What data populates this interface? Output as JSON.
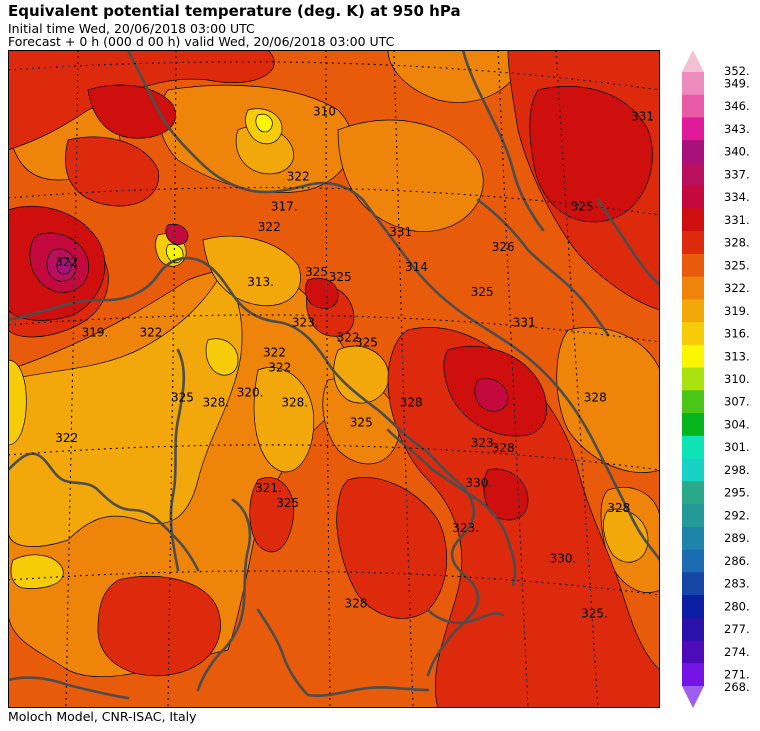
{
  "header": {
    "title": "Equivalent potential temperature (deg. K) at 950 hPa",
    "initial_time": "Initial time  Wed, 20/06/2018  03:00 UTC",
    "forecast": "Forecast  +   0 h  (000 d 00 h)  valid Wed, 20/06/2018 03:00 UTC"
  },
  "footer": {
    "credit": "Moloch Model, CNR-ISAC, Italy"
  },
  "legend": {
    "levels": [
      {
        "label": "352.",
        "color": "#f3c2d2"
      },
      {
        "label": "349.",
        "color": "#ec8bbd"
      },
      {
        "label": "346.",
        "color": "#e85aa8"
      },
      {
        "label": "343.",
        "color": "#e0189a"
      },
      {
        "label": "340.",
        "color": "#a8107a"
      },
      {
        "label": "337.",
        "color": "#ba0e5e"
      },
      {
        "label": "334.",
        "color": "#c4093e"
      },
      {
        "label": "331.",
        "color": "#cf0f0d"
      },
      {
        "label": "328.",
        "color": "#de2a0c"
      },
      {
        "label": "325.",
        "color": "#e75b0b"
      },
      {
        "label": "322.",
        "color": "#ee8409"
      },
      {
        "label": "319.",
        "color": "#f2a70b"
      },
      {
        "label": "316.",
        "color": "#f6cb07"
      },
      {
        "label": "313.",
        "color": "#faf502"
      },
      {
        "label": "310.",
        "color": "#a9e20f"
      },
      {
        "label": "307.",
        "color": "#4cc616"
      },
      {
        "label": "304.",
        "color": "#06b41d"
      },
      {
        "label": "301.",
        "color": "#0ee3b5"
      },
      {
        "label": "298.",
        "color": "#17d1c4"
      },
      {
        "label": "295.",
        "color": "#29a98a"
      },
      {
        "label": "292.",
        "color": "#239a98"
      },
      {
        "label": "289.",
        "color": "#1f84a9"
      },
      {
        "label": "286.",
        "color": "#1c6cb4"
      },
      {
        "label": "283.",
        "color": "#1546a6"
      },
      {
        "label": "280.",
        "color": "#0b1fa4"
      },
      {
        "label": "277.",
        "color": "#2a11aa"
      },
      {
        "label": "274.",
        "color": "#4d0bb9"
      },
      {
        "label": "271.",
        "color": "#7415e6"
      },
      {
        "label": "268.",
        "color": "#9e5ff0"
      }
    ]
  },
  "map": {
    "contour_labels": [
      {
        "text": "331",
        "lat": 46.9,
        "lon": 23.9
      },
      {
        "text": "319.",
        "lat": 42.6,
        "lon": 3.0
      },
      {
        "text": "322",
        "lat": 42.6,
        "lon": 5.2
      },
      {
        "text": "325",
        "lat": 41.3,
        "lon": 6.4
      },
      {
        "text": "328.",
        "lat": 41.2,
        "lon": 7.6
      },
      {
        "text": "322",
        "lat": 40.5,
        "lon": 2.0
      },
      {
        "text": "320.",
        "lat": 41.4,
        "lon": 8.9
      },
      {
        "text": "322",
        "lat": 41.9,
        "lon": 10.1
      },
      {
        "text": "323.",
        "lat": 42.8,
        "lon": 11.0
      },
      {
        "text": "325",
        "lat": 43.8,
        "lon": 11.5
      },
      {
        "text": "322",
        "lat": 42.5,
        "lon": 12.7
      },
      {
        "text": "325",
        "lat": 42.4,
        "lon": 13.4
      },
      {
        "text": "313.",
        "lat": 43.6,
        "lon": 9.3
      },
      {
        "text": "322",
        "lat": 42.2,
        "lon": 9.9
      },
      {
        "text": "328.",
        "lat": 41.2,
        "lon": 10.6
      },
      {
        "text": "325",
        "lat": 40.8,
        "lon": 13.2
      },
      {
        "text": "328",
        "lat": 41.2,
        "lon": 15.1
      },
      {
        "text": "321.",
        "lat": 39.5,
        "lon": 9.6
      },
      {
        "text": "325",
        "lat": 39.2,
        "lon": 10.4
      },
      {
        "text": "323.",
        "lat": 40.4,
        "lon": 17.8
      },
      {
        "text": "328",
        "lat": 40.3,
        "lon": 18.6
      },
      {
        "text": "330.",
        "lat": 39.6,
        "lon": 17.6
      },
      {
        "text": "323.",
        "lat": 38.7,
        "lon": 17.1
      },
      {
        "text": "328.",
        "lat": 37.2,
        "lon": 13.0
      },
      {
        "text": "330.",
        "lat": 38.1,
        "lon": 20.8
      },
      {
        "text": "325.",
        "lat": 37.0,
        "lon": 22.0
      },
      {
        "text": "328",
        "lat": 39.1,
        "lon": 23.0
      },
      {
        "text": "328",
        "lat": 41.3,
        "lon": 22.1
      },
      {
        "text": "331",
        "lat": 42.8,
        "lon": 19.4
      },
      {
        "text": "325",
        "lat": 43.4,
        "lon": 17.8
      },
      {
        "text": "326",
        "lat": 44.3,
        "lon": 18.6
      },
      {
        "text": "325",
        "lat": 45.1,
        "lon": 21.6
      },
      {
        "text": "331",
        "lat": 44.6,
        "lon": 14.7
      },
      {
        "text": "314",
        "lat": 43.9,
        "lon": 15.3
      },
      {
        "text": "325",
        "lat": 43.7,
        "lon": 12.4
      },
      {
        "text": "322",
        "lat": 45.7,
        "lon": 10.8
      },
      {
        "text": "317.",
        "lat": 45.1,
        "lon": 10.2
      },
      {
        "text": "322",
        "lat": 44.7,
        "lon": 9.7
      },
      {
        "text": "310",
        "lat": 47.0,
        "lon": 11.8
      },
      {
        "text": "322",
        "lat": 44.0,
        "lon": 2.0
      }
    ]
  }
}
